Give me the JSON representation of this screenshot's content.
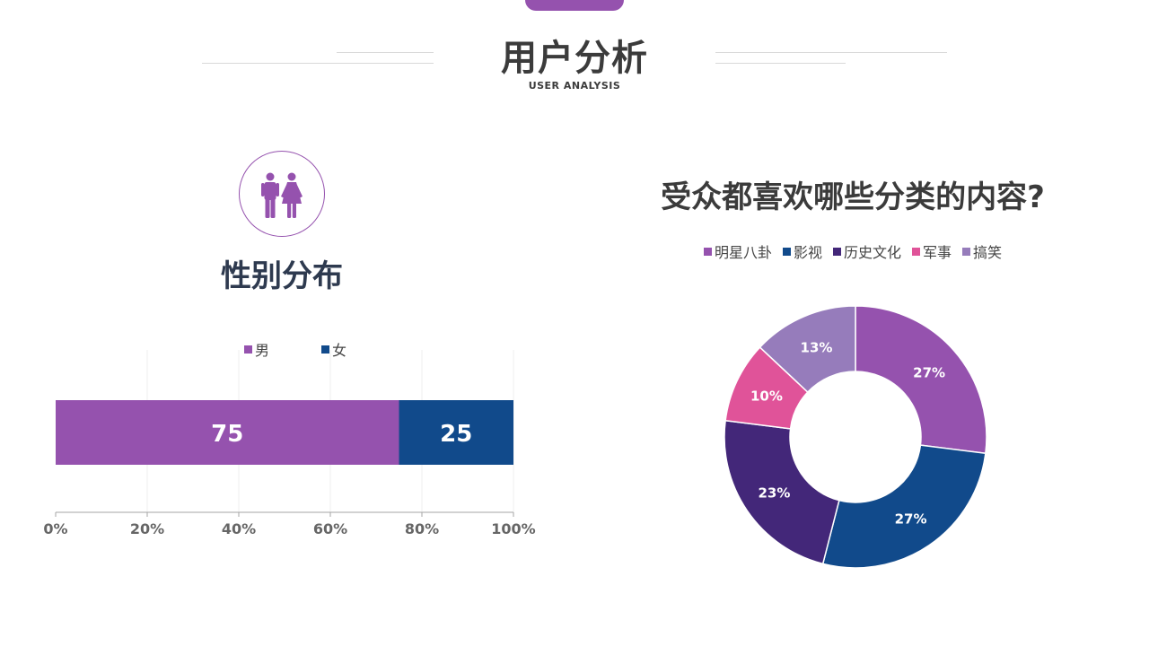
{
  "header": {
    "title": "用户分析",
    "subtitle": "USER ANALYSIS"
  },
  "colors": {
    "purple": "#9552ae",
    "blue": "#114a8b",
    "dark_purple": "#432779",
    "pink": "#e05399",
    "lavender": "#967cbb"
  },
  "gender_section": {
    "icon": "male-female-icon",
    "title": "性别分布"
  },
  "donut_section": {
    "title": "受众都喜欢哪些分类的内容?"
  },
  "chart_data": [
    {
      "type": "bar",
      "orientation": "horizontal",
      "stacked": "percent",
      "series": [
        {
          "name": "男",
          "values": [
            75
          ],
          "color": "#9552ae"
        },
        {
          "name": "女",
          "values": [
            25
          ],
          "color": "#114a8b"
        }
      ],
      "data_labels": [
        "75",
        "25"
      ],
      "xlim": [
        0,
        100
      ],
      "x_ticks": [
        "0%",
        "20%",
        "40%",
        "60%",
        "80%",
        "100%"
      ],
      "grid": true,
      "legend": "top"
    },
    {
      "type": "pie",
      "variant": "donut",
      "slices": [
        {
          "name": "明星八卦",
          "value": 27,
          "label": "27%",
          "color": "#9552ae"
        },
        {
          "name": "影视",
          "value": 27,
          "label": "27%",
          "color": "#114a8b"
        },
        {
          "name": "历史文化",
          "value": 23,
          "label": "23%",
          "color": "#432779"
        },
        {
          "name": "军事",
          "value": 10,
          "label": "10%",
          "color": "#e05399"
        },
        {
          "name": "搞笑",
          "value": 13,
          "label": "13%",
          "color": "#967cbb"
        }
      ],
      "legend": "top"
    }
  ]
}
